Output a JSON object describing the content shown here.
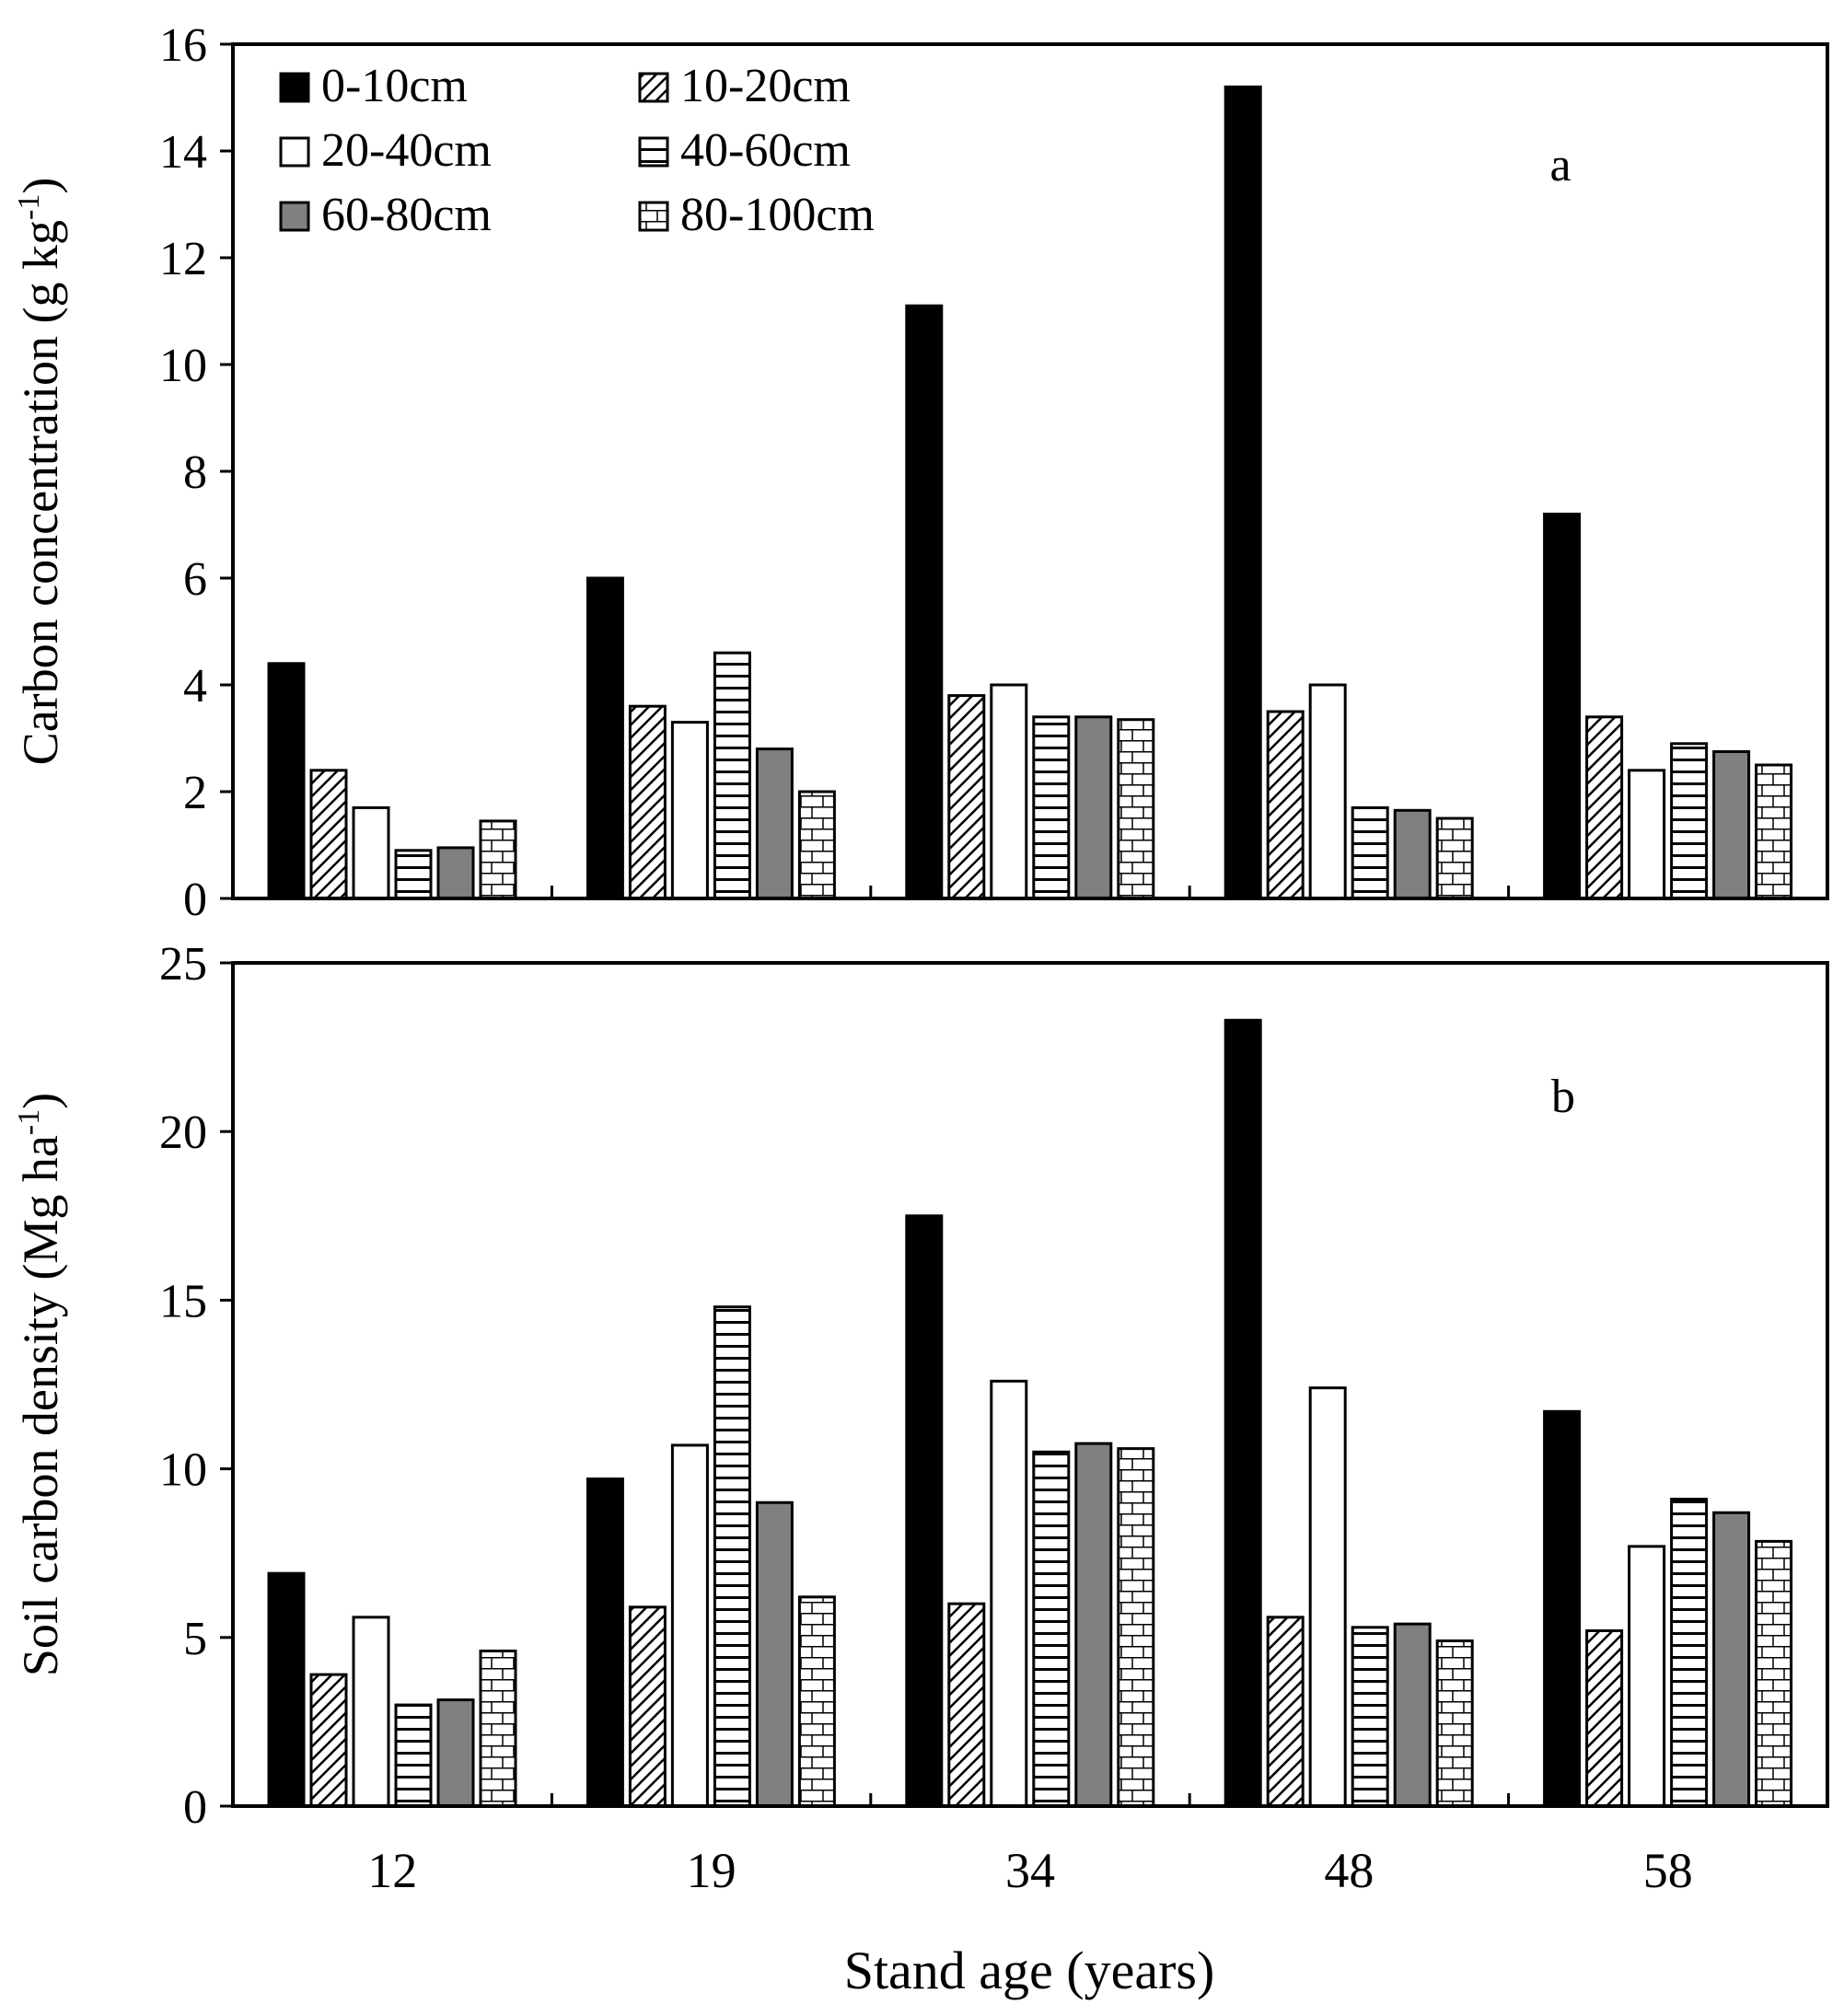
{
  "chart_data": [
    {
      "panel": "a",
      "type": "bar",
      "ylabel": "Carbon concentration (g kg",
      "ylabel_sup": "-1",
      "ylabel_close": ")",
      "ylim": [
        0,
        16
      ],
      "ytick_labels": [
        "0",
        "2",
        "4",
        "6",
        "8",
        "10",
        "12",
        "14",
        "16"
      ],
      "categories": [
        "12",
        "19",
        "34",
        "48",
        "58"
      ],
      "series": [
        {
          "name": "0-10cm",
          "values": [
            4.4,
            6.0,
            11.1,
            15.2,
            7.2
          ]
        },
        {
          "name": "10-20cm",
          "values": [
            2.4,
            3.6,
            3.8,
            3.5,
            3.4
          ]
        },
        {
          "name": "20-40cm",
          "values": [
            1.7,
            3.3,
            4.0,
            4.0,
            2.4
          ]
        },
        {
          "name": "40-60cm",
          "values": [
            0.9,
            4.6,
            3.4,
            1.7,
            2.9
          ]
        },
        {
          "name": "60-80cm",
          "values": [
            0.95,
            2.8,
            3.4,
            1.65,
            2.75
          ]
        },
        {
          "name": "80-100cm",
          "values": [
            1.45,
            2.0,
            3.35,
            1.5,
            2.5
          ]
        }
      ],
      "legend": true,
      "legend_position": "top-left"
    },
    {
      "panel": "b",
      "type": "bar",
      "ylabel": "Soil carbon density (Mg ha",
      "ylabel_sup": "-1",
      "ylabel_close": ")",
      "ylim": [
        0,
        25
      ],
      "ytick_labels": [
        "0",
        "5",
        "10",
        "15",
        "20",
        "25"
      ],
      "categories": [
        "12",
        "19",
        "34",
        "48",
        "58"
      ],
      "series": [
        {
          "name": "0-10cm",
          "values": [
            6.9,
            9.7,
            17.5,
            23.3,
            11.7
          ]
        },
        {
          "name": "10-20cm",
          "values": [
            3.9,
            5.9,
            6.0,
            5.6,
            5.2
          ]
        },
        {
          "name": "20-40cm",
          "values": [
            5.6,
            10.7,
            12.6,
            12.4,
            7.7
          ]
        },
        {
          "name": "40-60cm",
          "values": [
            3.0,
            14.8,
            10.5,
            5.3,
            9.1
          ]
        },
        {
          "name": "60-80cm",
          "values": [
            3.15,
            9.0,
            10.75,
            5.4,
            8.7
          ]
        },
        {
          "name": "80-100cm",
          "values": [
            4.6,
            6.2,
            10.6,
            4.9,
            7.85
          ]
        }
      ],
      "legend": false
    }
  ],
  "xlabel": "Stand age (years)",
  "colors": {
    "black": "#000000",
    "gray": "#808080",
    "white": "#ffffff"
  },
  "series_styles": [
    "solid-black",
    "diagonal-hatch",
    "white",
    "horizontal-lines",
    "solid-gray",
    "brick"
  ]
}
